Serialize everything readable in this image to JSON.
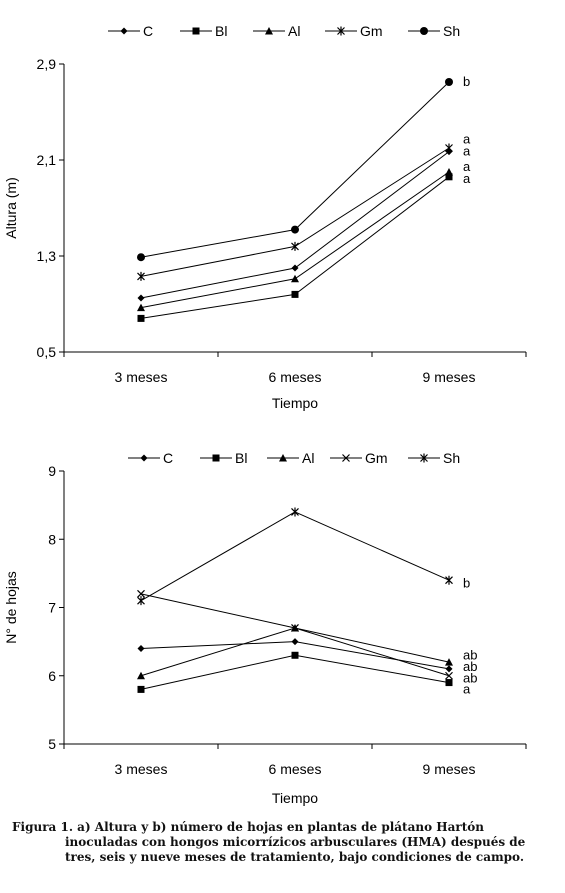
{
  "chart_data": [
    {
      "type": "line",
      "categories": [
        "3 meses",
        "6 meses",
        "9 meses"
      ],
      "xlabel": "Tiempo",
      "ylabel": "Altura (m)",
      "ylim": [
        0.5,
        2.9
      ],
      "yticks": [
        "0,5",
        "1,3",
        "2,1",
        "2,9"
      ],
      "yticks_values": [
        0.5,
        1.3,
        2.1,
        2.9
      ],
      "legend_position": "top",
      "series": [
        {
          "name": "C",
          "marker": "diamond",
          "values": [
            0.95,
            1.2,
            2.17
          ]
        },
        {
          "name": "Bl",
          "marker": "square",
          "values": [
            0.78,
            0.98,
            1.96
          ]
        },
        {
          "name": "Al",
          "marker": "triangle",
          "values": [
            0.87,
            1.11,
            2.0
          ]
        },
        {
          "name": "Gm",
          "marker": "asterisk",
          "values": [
            1.13,
            1.38,
            2.2
          ]
        },
        {
          "name": "Sh",
          "marker": "circle",
          "values": [
            1.29,
            1.52,
            2.75
          ]
        }
      ],
      "annotations": [
        {
          "text": "b",
          "y": 2.75
        },
        {
          "text": "a",
          "y": 2.27
        },
        {
          "text": "a",
          "y": 2.17
        },
        {
          "text": "a",
          "y": 2.04
        },
        {
          "text": "a",
          "y": 1.94
        }
      ]
    },
    {
      "type": "line",
      "categories": [
        "3 meses",
        "6 meses",
        "9 meses"
      ],
      "xlabel": "Tiempo",
      "ylabel": "N° de hojas",
      "ylim": [
        5,
        9
      ],
      "yticks": [
        "5",
        "6",
        "7",
        "8",
        "9"
      ],
      "yticks_values": [
        5,
        6,
        7,
        8,
        9
      ],
      "legend_position": "top",
      "series": [
        {
          "name": "C",
          "marker": "diamond",
          "values": [
            6.4,
            6.5,
            6.1
          ]
        },
        {
          "name": "Bl",
          "marker": "square",
          "values": [
            5.8,
            6.3,
            5.9
          ]
        },
        {
          "name": "Al",
          "marker": "triangle",
          "values": [
            6.0,
            6.7,
            6.2
          ]
        },
        {
          "name": "Gm",
          "marker": "x",
          "values": [
            7.2,
            6.7,
            6.0
          ]
        },
        {
          "name": "Sh",
          "marker": "asterisk",
          "values": [
            7.1,
            8.4,
            7.4
          ]
        }
      ],
      "annotations": [
        {
          "text": "b",
          "y": 7.35
        },
        {
          "text": "ab",
          "y": 6.3
        },
        {
          "text": "ab",
          "y": 6.13
        },
        {
          "text": "ab",
          "y": 5.96
        },
        {
          "text": "a",
          "y": 5.8
        }
      ]
    }
  ],
  "caption": {
    "lead": "Figura 1. a) Altura y b) número de hojas en plantas de plátano Hartón",
    "rest": "inoculadas con hongos micorrízicos arbusculares (HMA) después de tres, seis y nueve meses de tratamiento, bajo condiciones de campo."
  }
}
